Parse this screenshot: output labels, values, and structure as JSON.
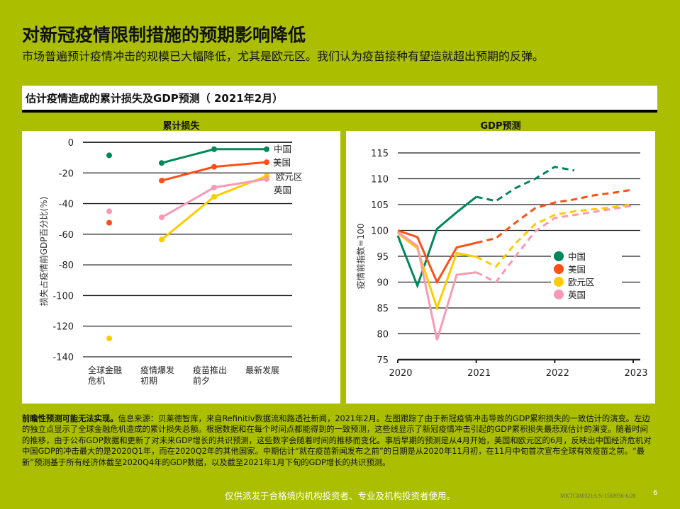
{
  "header": {
    "title": "对新冠疫情限制措施的预期影响降低",
    "subtitle": "市场普遍预计疫情冲击的规模已大幅降低，尤其是欧元区。我们认为疫苗接种有望造就超出预期的反弹。"
  },
  "section_title": "估计疫情造成的累计损失及GDP预测（ 2021年2月）",
  "colors": {
    "background": "#abbf00",
    "中国": "#00875a",
    "美国": "#ff4f17",
    "欧元区": "#ffcc00",
    "英国": "#f99ab4"
  },
  "chart_data": [
    {
      "type": "line",
      "title": "累计损失",
      "ylabel": "损失占疫情前GDP百分比(%)",
      "ylim": [
        -140,
        0
      ],
      "yticks": [
        "0",
        "-20",
        "-40",
        "-60",
        "-80",
        "-100",
        "-120",
        "-140"
      ],
      "categories": [
        "全球金融危机",
        "疫情爆发初期",
        "疫苗推出前夕",
        "最新发展"
      ],
      "category_lines": [
        [
          "全球金融",
          "危机"
        ],
        [
          "疫情爆发",
          "初期"
        ],
        [
          "疫苗推出",
          "前夕"
        ],
        [
          "最新发展",
          ""
        ]
      ],
      "grid": true,
      "legend": "right, labels at line ends",
      "note": "first category is an isolated point, not connected",
      "series": [
        {
          "name": "中国",
          "values": [
            -8.5,
            -13.5,
            -4.5,
            -4.5
          ]
        },
        {
          "name": "美国",
          "values": [
            -52.5,
            -25,
            -16,
            -13
          ]
        },
        {
          "name": "欧元区",
          "values": [
            -128,
            -63.5,
            -35.5,
            -22
          ]
        },
        {
          "name": "英国",
          "values": [
            -45,
            -49,
            -29.5,
            -24
          ]
        }
      ]
    },
    {
      "type": "line",
      "title": "GDP预测",
      "ylabel": "疫情前指数=100",
      "ylim": [
        75,
        115
      ],
      "yticks": [
        "115",
        "110",
        "105",
        "100",
        "95",
        "90",
        "85",
        "80",
        "75"
      ],
      "xlim": [
        2020,
        2023
      ],
      "xticks": [
        "2020",
        "2021",
        "2022",
        "2023"
      ],
      "grid": true,
      "legend": "center-right",
      "x": [
        2020.0,
        2020.25,
        2020.5,
        2020.75,
        2021.0,
        2021.25,
        2021.5,
        2021.75,
        2022.0,
        2022.25,
        2022.5,
        2022.75,
        2023.0
      ],
      "actual_until": 2021.0,
      "style_note": "solid = actual, dashed = forecast",
      "series": [
        {
          "name": "中国",
          "values": [
            99,
            89.3,
            100.3,
            103.5,
            106.5,
            105.7,
            108.2,
            110,
            112.3,
            111.6,
            null,
            null,
            null
          ]
        },
        {
          "name": "美国",
          "values": [
            100,
            98.7,
            90,
            96.7,
            97.6,
            98.5,
            101.5,
            104.3,
            105.4,
            106,
            106.8,
            107.3,
            107.9
          ]
        },
        {
          "name": "欧元区",
          "values": [
            99.5,
            96.5,
            85,
            95.6,
            94.9,
            93,
            97.5,
            101.2,
            103,
            103.7,
            104.1,
            104.5,
            105.0
          ]
        },
        {
          "name": "英国",
          "values": [
            99.7,
            97,
            78.8,
            91.4,
            91.9,
            90,
            95,
            99.8,
            102.4,
            103,
            103.6,
            104.2,
            104.8
          ]
        }
      ]
    }
  ],
  "footnote": {
    "bold": "前瞻性预测可能无法实现。",
    "text": "信息来源：贝莱德智库，来自Refinitiv数据流和路透社新闻，2021年2月。左图跟踪了由于新冠疫情冲击导致的GDP累积损失的一致估计的演变。左边的独立点显示了全球金融危机造成的累计损失总额。根据数据和在每个时间点都能得到的一致预测，这些线显示了新冠疫情冲击引起的GDP累积损失最悲观估计的演变。随着时间的推移，由于公布GDP数据和更新了对未来GDP增长的共识预测，这些数字会随着时间的推移而变化。事后早期的预测是从4月开始，美国和欧元区的6月，反映出中国经济危机对中国GDP的冲击最大的是2020Q1年，而在2020Q2年的其他国家。中期估计“就在疫苗新闻发布之前”的日期是从2020年11月初，在11月中旬首次宣布全球有效疫苗之前。“最新”预测基于所有经济体截至2020Q4年的GDP数据，以及截至2021年1月下旬的GDP增长的共识预测。"
  },
  "footer": {
    "disclaimer": "仅供派发于合格境内机构投资者、专业及机构投资者使用。",
    "code": "MKTGM0321A/S-1568936-6/28",
    "page": "6"
  }
}
